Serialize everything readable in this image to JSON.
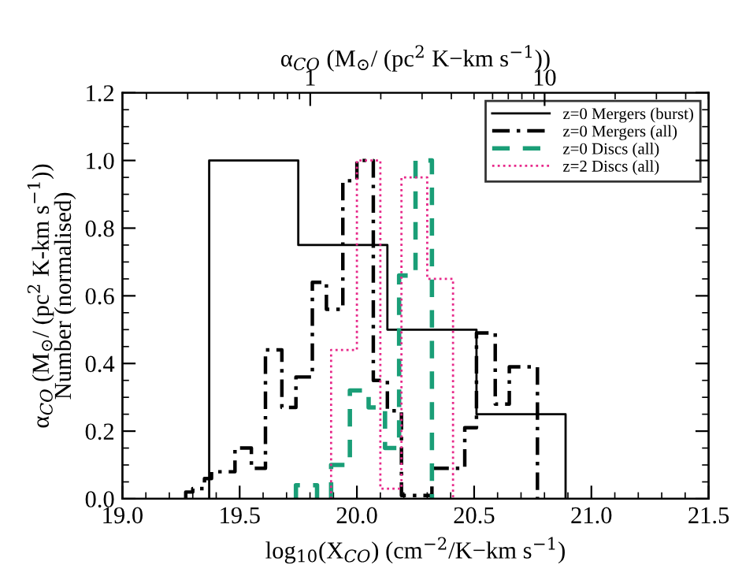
{
  "chart_data": {
    "type": "step",
    "xlabel": "log$_{10}$(X$_{CO}$) (cm$^{−2}$/K−km s$^{−1}$)",
    "ylabel": "α$_{CO}$ (M$_{⊙}$/ (pc$^{2}$ K-km s$^{−1}$))\nNumber (normalised)",
    "x2label": "α$_{CO}$ (M$_{⊙}$/ (pc$^{2}$ K−km s$^{−1}$))",
    "xlim": [
      19.0,
      21.5
    ],
    "xticks": [
      {
        "value": 19.0,
        "label": "19.0"
      },
      {
        "value": 19.5,
        "label": "19.5"
      },
      {
        "value": 20.0,
        "label": "20.0"
      },
      {
        "value": 20.5,
        "label": "20.5"
      },
      {
        "value": 21.0,
        "label": "21.0"
      },
      {
        "value": 21.5,
        "label": "21.5"
      }
    ],
    "ylim": [
      0,
      1.2
    ],
    "yticks": [
      {
        "value": 0,
        "label": "0.0"
      },
      {
        "value": 0.2,
        "label": "0.2"
      },
      {
        "value": 0.4,
        "label": "0.4"
      },
      {
        "value": 0.6,
        "label": "0.6"
      },
      {
        "value": 0.8,
        "label": "0.8"
      },
      {
        "value": 1.0,
        "label": "1.0"
      },
      {
        "value": 1.2,
        "label": "1.2"
      }
    ],
    "x2lim": [
      0.158,
      50.1
    ],
    "x2ticks": [
      1,
      10
    ],
    "log": "x2",
    "legend": "top right",
    "grid": false,
    "series": [
      {
        "name": "z=0 Mergers (burst)",
        "color": "#000000",
        "line_style": "solid",
        "x": [
          19.37,
          19.37,
          19.75,
          20.13,
          20.51,
          20.89
        ],
        "values": [
          0,
          1.0,
          0.75,
          0.5,
          0.25,
          0
        ]
      },
      {
        "name": "z=0 Mergers (all)",
        "color": "#000000",
        "line_style": "dashdot",
        "x": [
          19.27,
          19.27,
          19.3,
          19.35,
          19.38,
          19.48,
          19.55,
          19.61,
          19.68,
          19.74,
          19.81,
          19.87,
          19.94,
          20.0,
          20.07,
          20.13,
          20.19,
          20.32,
          20.46,
          20.51,
          20.59,
          20.65,
          20.77
        ],
        "values": [
          0,
          0.02,
          0.03,
          0.06,
          0.08,
          0.15,
          0.09,
          0.44,
          0.27,
          0.36,
          0.64,
          0.56,
          0.94,
          1.0,
          0.35,
          0.26,
          0.01,
          0.09,
          0.21,
          0.49,
          0.28,
          0.39,
          0
        ]
      },
      {
        "name": "z=0 Discs (all)",
        "color": "#1a9e77",
        "line_style": "dashed",
        "x": [
          19.74,
          19.74,
          19.83,
          19.89,
          19.97,
          20.05,
          20.12,
          20.18,
          20.25,
          20.32
        ],
        "values": [
          0,
          0.04,
          0.0,
          0.1,
          0.32,
          0.27,
          0.15,
          0.66,
          1.0,
          0
        ]
      },
      {
        "name": "z=2 Discs (all)",
        "color": "#e7298a",
        "line_style": "dotted",
        "x": [
          19.89,
          19.89,
          20.0,
          20.1,
          20.19,
          20.3,
          20.41
        ],
        "values": [
          0,
          0.44,
          1.0,
          0.03,
          0.95,
          0.65,
          0
        ]
      }
    ]
  }
}
